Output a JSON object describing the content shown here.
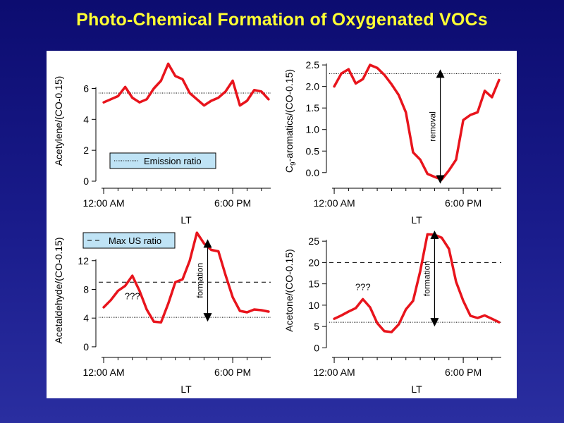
{
  "page_title": "Photo-Chemical Formation of Oxygenated VOCs",
  "colors": {
    "background": "#1a1c8c",
    "title": "#ffff33",
    "series": "#e8141c",
    "legend_bg": "#bfe3f5"
  },
  "chart_data": [
    {
      "id": "acetylene",
      "type": "line",
      "title": "",
      "ylabel": "Acetylene/(CO-0.15)",
      "xlabel": "LT",
      "x_tick_labels": [
        "12:00 AM",
        "6:00 PM"
      ],
      "x_tick_positions": [
        0,
        18
      ],
      "xlim": [
        -0.3,
        23.3
      ],
      "ylim": [
        0,
        7.8
      ],
      "y_ticks": [
        0,
        2,
        4,
        6
      ],
      "series": [
        {
          "name": "Acetylene",
          "x": [
            0,
            1,
            2,
            3,
            4,
            5,
            6,
            7,
            8,
            9,
            10,
            11,
            12,
            13,
            14,
            15,
            16,
            17,
            18,
            19,
            20,
            21,
            22,
            23
          ],
          "values": [
            5.1,
            5.3,
            5.5,
            6.1,
            5.4,
            5.1,
            5.3,
            6.0,
            6.5,
            7.6,
            6.8,
            6.6,
            5.7,
            5.3,
            4.9,
            5.2,
            5.4,
            5.8,
            6.5,
            4.9,
            5.2,
            5.9,
            5.8,
            5.3
          ]
        }
      ],
      "reference_lines": [
        {
          "name": "Emission ratio",
          "value": 5.7,
          "style": "dotted"
        }
      ],
      "legend": {
        "label": "Emission ratio",
        "placement": "bottom-left"
      }
    },
    {
      "id": "c9-aromatics",
      "type": "line",
      "title": "",
      "ylabel": "C9-aromatics/(CO-0.15)",
      "ylabel_main": "C",
      "ylabel_sub": "9",
      "ylabel_rest": "-aromatics/(CO-0.15)",
      "xlabel": "LT",
      "x_tick_labels": [
        "12:00 AM",
        "6:00 PM"
      ],
      "x_tick_positions": [
        0,
        18
      ],
      "xlim": [
        -0.3,
        23.3
      ],
      "ylim": [
        -0.2,
        2.6
      ],
      "y_ticks": [
        0.0,
        0.5,
        1.0,
        1.5,
        2.0,
        2.5
      ],
      "y_tick_labels": [
        "0.0",
        "0.5",
        "1.0",
        "1.5",
        "2.0",
        "2.5"
      ],
      "series": [
        {
          "name": "C9-aromatics",
          "x": [
            0,
            1,
            2,
            3,
            4,
            5,
            6,
            7,
            8,
            9,
            10,
            11,
            12,
            13,
            14,
            15,
            16,
            17,
            18,
            19,
            20,
            21,
            22,
            23
          ],
          "values": [
            2.0,
            2.3,
            2.4,
            2.07,
            2.17,
            2.5,
            2.43,
            2.27,
            2.05,
            1.8,
            1.4,
            0.47,
            0.3,
            -0.03,
            -0.1,
            -0.16,
            0.05,
            0.3,
            1.22,
            1.34,
            1.4,
            1.9,
            1.75,
            2.15
          ]
        }
      ],
      "reference_lines": [
        {
          "name": "Emission ratio",
          "value": 2.3,
          "style": "dotted"
        }
      ],
      "annotations": [
        {
          "text": "removal",
          "arrow_from": 2.3,
          "arrow_to": -0.16,
          "x": 14.8
        }
      ]
    },
    {
      "id": "acetaldehyde",
      "type": "line",
      "title": "",
      "ylabel": "Acetaldehyde/(CO-0.15)",
      "xlabel": "LT",
      "x_tick_labels": [
        "12:00 AM",
        "6:00 PM"
      ],
      "x_tick_positions": [
        0,
        18
      ],
      "xlim": [
        -0.3,
        23.3
      ],
      "ylim": [
        -0.5,
        16.2
      ],
      "y_ticks": [
        0,
        4,
        8,
        12
      ],
      "series": [
        {
          "name": "Acetaldehyde",
          "x": [
            0,
            1,
            2,
            3,
            4,
            5,
            6,
            7,
            8,
            9,
            10,
            11,
            12,
            13,
            14,
            15,
            16,
            17,
            18,
            19,
            20,
            21,
            22,
            23
          ],
          "values": [
            5.5,
            6.5,
            7.8,
            8.5,
            9.9,
            7.8,
            5.2,
            3.5,
            3.4,
            6.0,
            9.0,
            9.4,
            12.0,
            15.9,
            14.4,
            13.5,
            13.3,
            10.0,
            6.9,
            5.0,
            4.8,
            5.2,
            5.1,
            4.9
          ]
        }
      ],
      "reference_lines": [
        {
          "name": "Emission ratio",
          "value": 4.1,
          "style": "dotted"
        },
        {
          "name": "Max US ratio",
          "value": 9.0,
          "style": "dashed"
        }
      ],
      "legend": {
        "label": "Max US ratio",
        "placement": "top-left"
      },
      "annotations": [
        {
          "text": "???",
          "x": 4,
          "y": 6.6
        },
        {
          "text": "formation",
          "arrow_from": 4.1,
          "arrow_to": 14.4,
          "x": 14.5
        }
      ]
    },
    {
      "id": "acetone",
      "type": "line",
      "title": "",
      "ylabel": "Acetone/(CO-0.15)",
      "xlabel": "LT",
      "x_tick_labels": [
        "12:00 AM",
        "6:00 PM"
      ],
      "x_tick_positions": [
        0,
        18
      ],
      "xlim": [
        -0.3,
        23.3
      ],
      "ylim": [
        -0.6,
        27.5
      ],
      "y_ticks": [
        0,
        5,
        10,
        15,
        20,
        25
      ],
      "series": [
        {
          "name": "Acetone",
          "x": [
            0,
            1,
            2,
            3,
            4,
            5,
            6,
            7,
            8,
            9,
            10,
            11,
            12,
            13,
            14,
            15,
            16,
            17,
            18,
            19,
            20,
            21,
            22,
            23
          ],
          "values": [
            6.8,
            7.6,
            8.5,
            9.3,
            11.4,
            9.5,
            5.8,
            3.9,
            3.7,
            5.5,
            9.0,
            11.0,
            18.0,
            26.6,
            26.5,
            25.8,
            23.2,
            15.5,
            11.0,
            7.5,
            7.0,
            7.6,
            6.8,
            6.0
          ]
        }
      ],
      "reference_lines": [
        {
          "name": "Emission ratio",
          "value": 6.0,
          "style": "dotted"
        },
        {
          "name": "Max US ratio",
          "value": 20.0,
          "style": "dashed"
        }
      ],
      "annotations": [
        {
          "text": "???",
          "x": 4,
          "y": 13.5
        },
        {
          "text": "formation",
          "arrow_from": 6.0,
          "arrow_to": 26.5,
          "x": 14.0
        }
      ]
    }
  ]
}
